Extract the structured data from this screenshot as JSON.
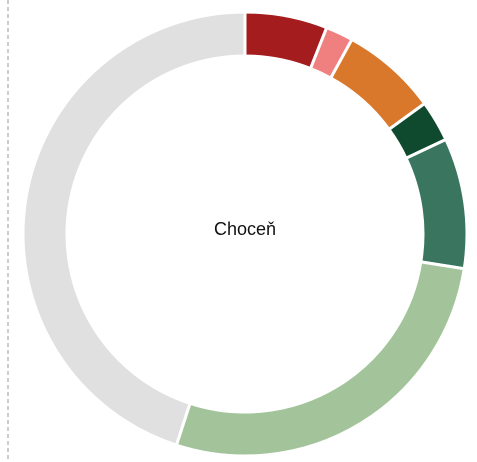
{
  "chart_data": {
    "type": "donut",
    "title": "Choceň",
    "values": [
      6,
      2,
      7,
      3,
      9.5,
      27.5,
      45
    ],
    "colors": [
      "#a51c1e",
      "#f08080",
      "#d9772a",
      "#0f4a2f",
      "#3a7560",
      "#a3c49a",
      "#e0e0e0"
    ]
  }
}
